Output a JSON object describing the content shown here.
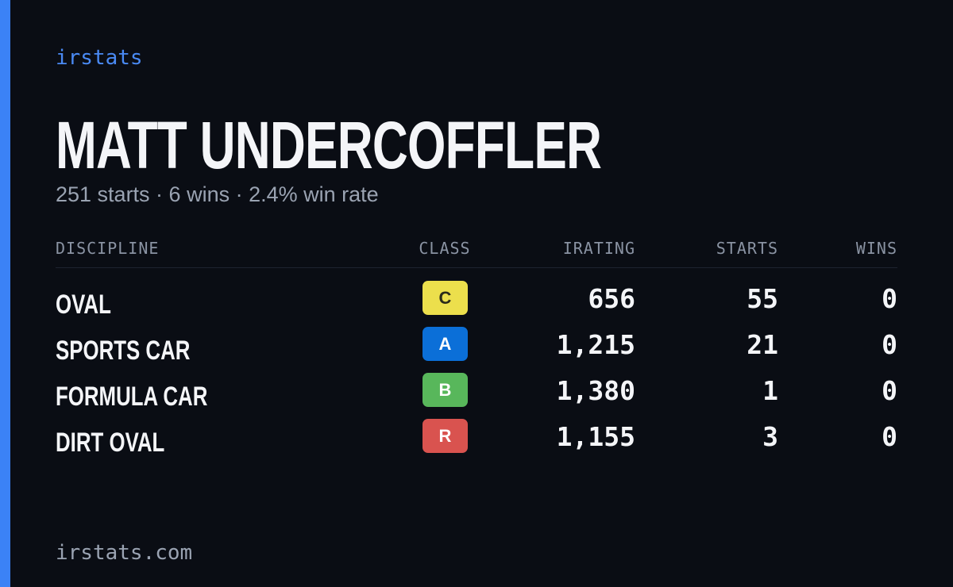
{
  "brand": "irstats",
  "header": {
    "title": "MATT UNDERCOFFLER",
    "subtitle": "251 starts · 6 wins · 2.4% win rate"
  },
  "table": {
    "columns": [
      "DISCIPLINE",
      "CLASS",
      "IRATING",
      "STARTS",
      "WINS"
    ],
    "rows": [
      {
        "discipline": "OVAL",
        "class": "C",
        "class_color": "#ecdf4c",
        "irating": "656",
        "starts": "55",
        "wins": "0"
      },
      {
        "discipline": "SPORTS CAR",
        "class": "A",
        "class_color": "#0b6fd8",
        "irating": "1,215",
        "starts": "21",
        "wins": "0"
      },
      {
        "discipline": "FORMULA CAR",
        "class": "B",
        "class_color": "#58b75b",
        "irating": "1,380",
        "starts": "1",
        "wins": "0"
      },
      {
        "discipline": "DIRT OVAL",
        "class": "R",
        "class_color": "#d9534f",
        "irating": "1,155",
        "starts": "3",
        "wins": "0"
      }
    ]
  },
  "footer": "irstats.com"
}
